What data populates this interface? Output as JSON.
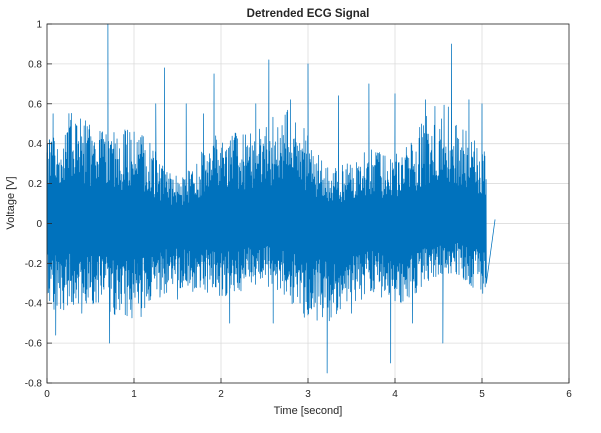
{
  "chart_data": {
    "type": "line",
    "title": "Detrended ECG Signal",
    "xlabel": "Time [second]",
    "ylabel": "Voltage [V]",
    "xlim": [
      0,
      6
    ],
    "ylim": [
      -0.8,
      1
    ],
    "xticks": [
      0,
      1,
      2,
      3,
      4,
      5,
      6
    ],
    "yticks": [
      -0.8,
      -0.6,
      -0.4,
      -0.2,
      0,
      0.2,
      0.4,
      0.6,
      0.8,
      1
    ],
    "grid": true,
    "signal_end": 5.15,
    "series": [
      {
        "color": "#0072bd",
        "points": [
          [
            0.0,
            0.05
          ],
          [
            0.03,
            0.42
          ],
          [
            0.05,
            0.1
          ],
          [
            0.07,
            0.55
          ],
          [
            0.1,
            -0.56
          ],
          [
            0.28,
            0.4
          ],
          [
            0.4,
            -0.45
          ],
          [
            0.55,
            0.3
          ],
          [
            0.7,
            1.0
          ],
          [
            0.72,
            -0.6
          ],
          [
            0.9,
            0.45
          ],
          [
            1.05,
            -0.4
          ],
          [
            1.25,
            0.6
          ],
          [
            1.3,
            -0.35
          ],
          [
            1.35,
            0.78
          ],
          [
            1.5,
            -0.38
          ],
          [
            1.6,
            0.6
          ],
          [
            1.8,
            0.55
          ],
          [
            1.92,
            0.75
          ],
          [
            2.1,
            -0.5
          ],
          [
            2.4,
            0.6
          ],
          [
            2.55,
            0.82
          ],
          [
            2.6,
            -0.5
          ],
          [
            2.8,
            0.62
          ],
          [
            2.95,
            -0.45
          ],
          [
            3.0,
            0.8
          ],
          [
            3.22,
            -0.75
          ],
          [
            3.35,
            0.64
          ],
          [
            3.5,
            -0.45
          ],
          [
            3.7,
            0.7
          ],
          [
            3.95,
            -0.7
          ],
          [
            4.0,
            0.65
          ],
          [
            4.2,
            -0.5
          ],
          [
            4.35,
            0.62
          ],
          [
            4.55,
            -0.6
          ],
          [
            4.65,
            0.9
          ],
          [
            4.85,
            0.62
          ],
          [
            5.0,
            0.6
          ],
          [
            5.05,
            -0.3
          ],
          [
            5.15,
            0.02
          ]
        ]
      }
    ]
  }
}
